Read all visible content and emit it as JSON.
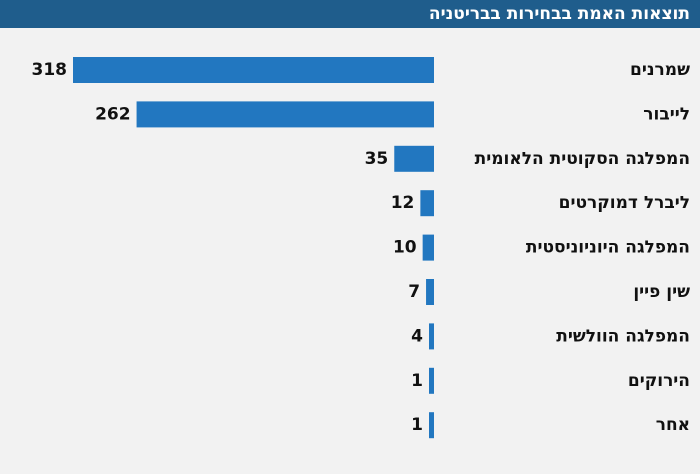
{
  "header": {
    "title": "תוצאות האמת בבחירות בבריטניה"
  },
  "colors": {
    "bar": "#2277c0",
    "header_bg": "#1f5d8c",
    "background": "#f2f2f2",
    "text": "#111111"
  },
  "chart_data": {
    "type": "bar",
    "orientation": "horizontal",
    "title": "תוצאות האמת בבחירות בבריטניה",
    "categories": [
      "שמרנים",
      "לייבור",
      "המפלגה הסקוטית הלאומית",
      "ליברל דמוקרטים",
      "המפלגה היוניוניסטית",
      "שין פיין",
      "המפלגה הוולשית",
      "הירוקים",
      "אחר"
    ],
    "values": [
      318,
      262,
      35,
      12,
      10,
      7,
      4,
      1,
      1
    ],
    "value_labels": [
      "318",
      "262",
      "35",
      "12",
      "10",
      "7",
      "4",
      "1",
      "1"
    ],
    "xlim": [
      0,
      318
    ],
    "grid": false,
    "legend": "none"
  }
}
